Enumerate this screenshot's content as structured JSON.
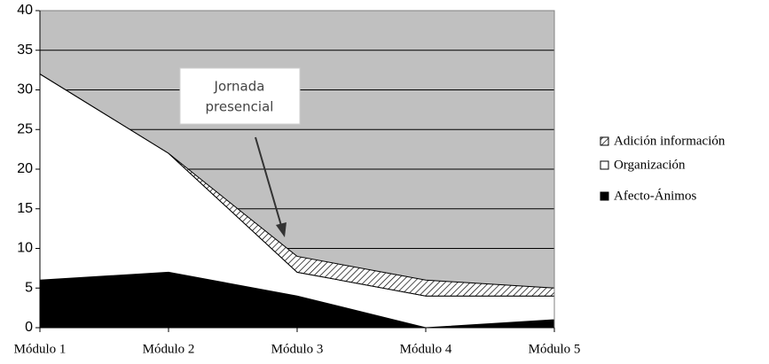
{
  "chart_data": {
    "type": "stacked_area",
    "categories": [
      "Módulo 1",
      "Módulo 2",
      "Módulo 3",
      "Módulo 4",
      "Módulo 5"
    ],
    "series": [
      {
        "name": "Afecto-Ánimos",
        "color": "#000000",
        "values": [
          6,
          7,
          4,
          0,
          1
        ]
      },
      {
        "name": "Organización",
        "color": "#ffffff",
        "values": [
          26,
          15,
          3,
          4,
          3
        ]
      },
      {
        "name": "Adición información",
        "color": "#ffffff",
        "pattern": "hatch",
        "values": [
          0,
          0,
          2,
          2,
          1
        ]
      }
    ],
    "ylim": [
      0,
      40
    ],
    "yticks": [
      0,
      5,
      10,
      15,
      20,
      25,
      30,
      35,
      40
    ],
    "grid": true,
    "plot_background": "#c0c0c0",
    "legend": "right",
    "annotation": {
      "lines": [
        "Jornada",
        "presencial"
      ]
    }
  }
}
